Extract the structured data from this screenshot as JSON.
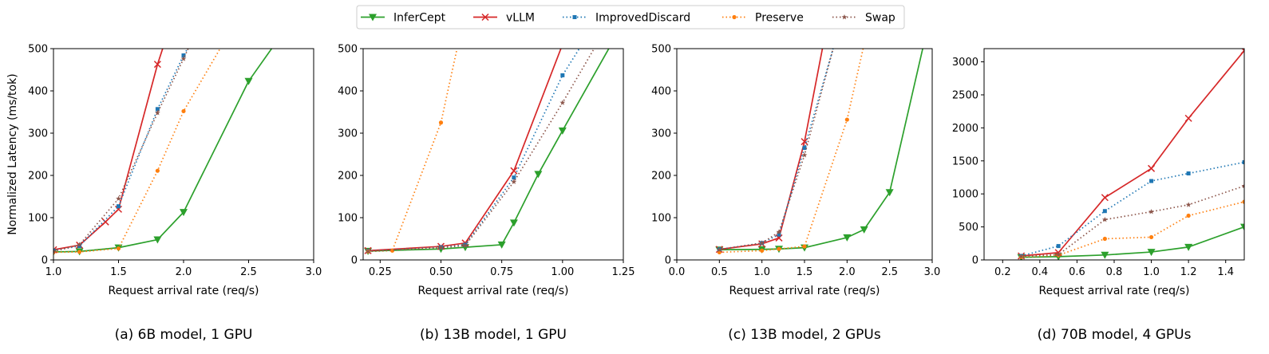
{
  "legend": {
    "placement": "top-center",
    "entries": [
      {
        "name": "InferCept",
        "color": "#2ca02c",
        "marker": "triangle-down",
        "dash": "solid"
      },
      {
        "name": "vLLM",
        "color": "#d62728",
        "marker": "x",
        "dash": "solid"
      },
      {
        "name": "ImprovedDiscard",
        "color": "#1f77b4",
        "marker": "square",
        "dash": "dotted"
      },
      {
        "name": "Preserve",
        "color": "#ff7f0e",
        "marker": "circle",
        "dash": "dotted"
      },
      {
        "name": "Swap",
        "color": "#8c564b",
        "marker": "star",
        "dash": "dotted"
      }
    ]
  },
  "chart_data": [
    {
      "type": "line",
      "caption": "(a) 6B model, 1 GPU",
      "xlabel": "Request arrival rate (req/s)",
      "ylabel": "Normalized Latency (ms/tok)",
      "xlim": [
        1.0,
        3.0
      ],
      "ylim": [
        0,
        500
      ],
      "xticks": [
        "1.0",
        "1.5",
        "2.0",
        "2.5",
        "3.0"
      ],
      "xtick_values": [
        1.0,
        1.5,
        2.0,
        2.5,
        3.0
      ],
      "yticks": [
        "0",
        "100",
        "200",
        "300",
        "400",
        "500"
      ],
      "ytick_values": [
        0,
        100,
        200,
        300,
        400,
        500
      ],
      "series": [
        {
          "name": "InferCept",
          "points": [
            [
              1.0,
              19
            ],
            [
              1.2,
              20
            ],
            [
              1.5,
              29
            ],
            [
              1.8,
              48
            ],
            [
              2.0,
              113
            ],
            [
              2.5,
              423
            ],
            [
              2.7,
              510
            ]
          ]
        },
        {
          "name": "vLLM",
          "points": [
            [
              1.0,
              24
            ],
            [
              1.2,
              35
            ],
            [
              1.4,
              90
            ],
            [
              1.5,
              120
            ],
            [
              1.8,
              463
            ],
            [
              1.85,
              510
            ]
          ]
        },
        {
          "name": "ImprovedDiscard",
          "points": [
            [
              1.0,
              22
            ],
            [
              1.2,
              33
            ],
            [
              1.5,
              127
            ],
            [
              1.8,
              357
            ],
            [
              2.0,
              484
            ],
            [
              2.05,
              510
            ]
          ]
        },
        {
          "name": "Preserve",
          "points": [
            [
              1.0,
              18
            ],
            [
              1.2,
              19
            ],
            [
              1.5,
              27
            ],
            [
              1.8,
              211
            ],
            [
              2.0,
              352
            ],
            [
              2.3,
              510
            ]
          ]
        },
        {
          "name": "Swap",
          "points": [
            [
              1.0,
              20
            ],
            [
              1.2,
              36
            ],
            [
              1.5,
              145
            ],
            [
              1.8,
              348
            ],
            [
              2.0,
              476
            ],
            [
              2.05,
              510
            ]
          ]
        }
      ]
    },
    {
      "type": "line",
      "caption": "(b) 13B model, 1 GPU",
      "xlabel": "Request arrival rate (req/s)",
      "ylabel": "",
      "xlim": [
        0.18,
        1.25
      ],
      "ylim": [
        0,
        500
      ],
      "xticks": [
        "0.25",
        "0.50",
        "0.75",
        "1.00",
        "1.25"
      ],
      "xtick_values": [
        0.25,
        0.5,
        0.75,
        1.0,
        1.25
      ],
      "yticks": [
        "0",
        "100",
        "200",
        "300",
        "400",
        "500"
      ],
      "ytick_values": [
        0,
        100,
        200,
        300,
        400,
        500
      ],
      "series": [
        {
          "name": "InferCept",
          "points": [
            [
              0.2,
              21
            ],
            [
              0.5,
              26
            ],
            [
              0.6,
              30
            ],
            [
              0.75,
              36
            ],
            [
              0.8,
              88
            ],
            [
              0.9,
              203
            ],
            [
              1.0,
              306
            ],
            [
              1.2,
              510
            ]
          ]
        },
        {
          "name": "vLLM",
          "points": [
            [
              0.2,
              22
            ],
            [
              0.5,
              32
            ],
            [
              0.6,
              40
            ],
            [
              0.8,
              211
            ],
            [
              1.0,
              510
            ]
          ]
        },
        {
          "name": "ImprovedDiscard",
          "points": [
            [
              0.2,
              21
            ],
            [
              0.5,
              30
            ],
            [
              0.6,
              36
            ],
            [
              0.8,
              195
            ],
            [
              1.0,
              437
            ],
            [
              1.08,
              510
            ]
          ]
        },
        {
          "name": "Preserve",
          "points": [
            [
              0.2,
              20
            ],
            [
              0.3,
              22
            ],
            [
              0.5,
              325
            ],
            [
              0.57,
              510
            ]
          ]
        },
        {
          "name": "Swap",
          "points": [
            [
              0.2,
              20
            ],
            [
              0.5,
              29
            ],
            [
              0.6,
              34
            ],
            [
              0.8,
              185
            ],
            [
              1.0,
              372
            ],
            [
              1.14,
              510
            ]
          ]
        }
      ]
    },
    {
      "type": "line",
      "caption": "(c) 13B model, 2 GPUs",
      "xlabel": "Request arrival rate (req/s)",
      "ylabel": "",
      "xlim": [
        0.0,
        3.0
      ],
      "ylim": [
        0,
        500
      ],
      "xticks": [
        "0.0",
        "0.5",
        "1.0",
        "1.5",
        "2.0",
        "2.5",
        "3.0"
      ],
      "xtick_values": [
        0.0,
        0.5,
        1.0,
        1.5,
        2.0,
        2.5,
        3.0
      ],
      "yticks": [
        "0",
        "100",
        "200",
        "300",
        "400",
        "500"
      ],
      "ytick_values": [
        0,
        100,
        200,
        300,
        400,
        500
      ],
      "series": [
        {
          "name": "InferCept",
          "points": [
            [
              0.5,
              24
            ],
            [
              1.0,
              25
            ],
            [
              1.2,
              26
            ],
            [
              1.5,
              29
            ],
            [
              2.0,
              53
            ],
            [
              2.2,
              72
            ],
            [
              2.5,
              160
            ],
            [
              2.9,
              510
            ]
          ]
        },
        {
          "name": "vLLM",
          "points": [
            [
              0.5,
              25
            ],
            [
              1.0,
              38
            ],
            [
              1.2,
              52
            ],
            [
              1.5,
              280
            ],
            [
              1.72,
              510
            ]
          ]
        },
        {
          "name": "ImprovedDiscard",
          "points": [
            [
              0.5,
              25
            ],
            [
              1.0,
              40
            ],
            [
              1.2,
              60
            ],
            [
              1.5,
              265
            ],
            [
              1.85,
              510
            ]
          ]
        },
        {
          "name": "Preserve",
          "points": [
            [
              0.5,
              18
            ],
            [
              1.0,
              22
            ],
            [
              1.2,
              26
            ],
            [
              1.5,
              32
            ],
            [
              2.0,
              332
            ],
            [
              2.2,
              510
            ]
          ]
        },
        {
          "name": "Swap",
          "points": [
            [
              0.5,
              24
            ],
            [
              1.0,
              40
            ],
            [
              1.2,
              66
            ],
            [
              1.5,
              248
            ],
            [
              1.85,
              510
            ]
          ]
        }
      ]
    },
    {
      "type": "line",
      "caption": "(d) 70B model, 4 GPUs",
      "xlabel": "Request arrival rate (req/s)",
      "ylabel": "",
      "xlim": [
        0.1,
        1.5
      ],
      "ylim": [
        0,
        3200
      ],
      "xticks": [
        "0.2",
        "0.4",
        "0.6",
        "0.8",
        "1.0",
        "1.2",
        "1.4"
      ],
      "xtick_values": [
        0.2,
        0.4,
        0.6,
        0.8,
        1.0,
        1.2,
        1.4
      ],
      "yticks": [
        "0",
        "500",
        "1000",
        "1500",
        "2000",
        "2500",
        "3000"
      ],
      "ytick_values": [
        0,
        500,
        1000,
        1500,
        2000,
        2500,
        3000
      ],
      "series": [
        {
          "name": "InferCept",
          "points": [
            [
              0.3,
              40
            ],
            [
              0.5,
              50
            ],
            [
              0.75,
              75
            ],
            [
              1.0,
              120
            ],
            [
              1.2,
              195
            ],
            [
              1.5,
              500
            ]
          ]
        },
        {
          "name": "vLLM",
          "points": [
            [
              0.3,
              60
            ],
            [
              0.5,
              110
            ],
            [
              0.75,
              945
            ],
            [
              1.0,
              1385
            ],
            [
              1.2,
              2145
            ],
            [
              1.5,
              3170
            ]
          ]
        },
        {
          "name": "ImprovedDiscard",
          "points": [
            [
              0.3,
              60
            ],
            [
              0.5,
              210
            ],
            [
              0.75,
              740
            ],
            [
              1.0,
              1195
            ],
            [
              1.2,
              1310
            ],
            [
              1.5,
              1480
            ]
          ]
        },
        {
          "name": "Preserve",
          "points": [
            [
              0.3,
              45
            ],
            [
              0.5,
              70
            ],
            [
              0.75,
              320
            ],
            [
              1.0,
              345
            ],
            [
              1.2,
              670
            ],
            [
              1.5,
              880
            ]
          ]
        },
        {
          "name": "Swap",
          "points": [
            [
              0.3,
              55
            ],
            [
              0.5,
              80
            ],
            [
              0.75,
              610
            ],
            [
              1.0,
              730
            ],
            [
              1.2,
              835
            ],
            [
              1.5,
              1120
            ]
          ]
        }
      ]
    }
  ]
}
